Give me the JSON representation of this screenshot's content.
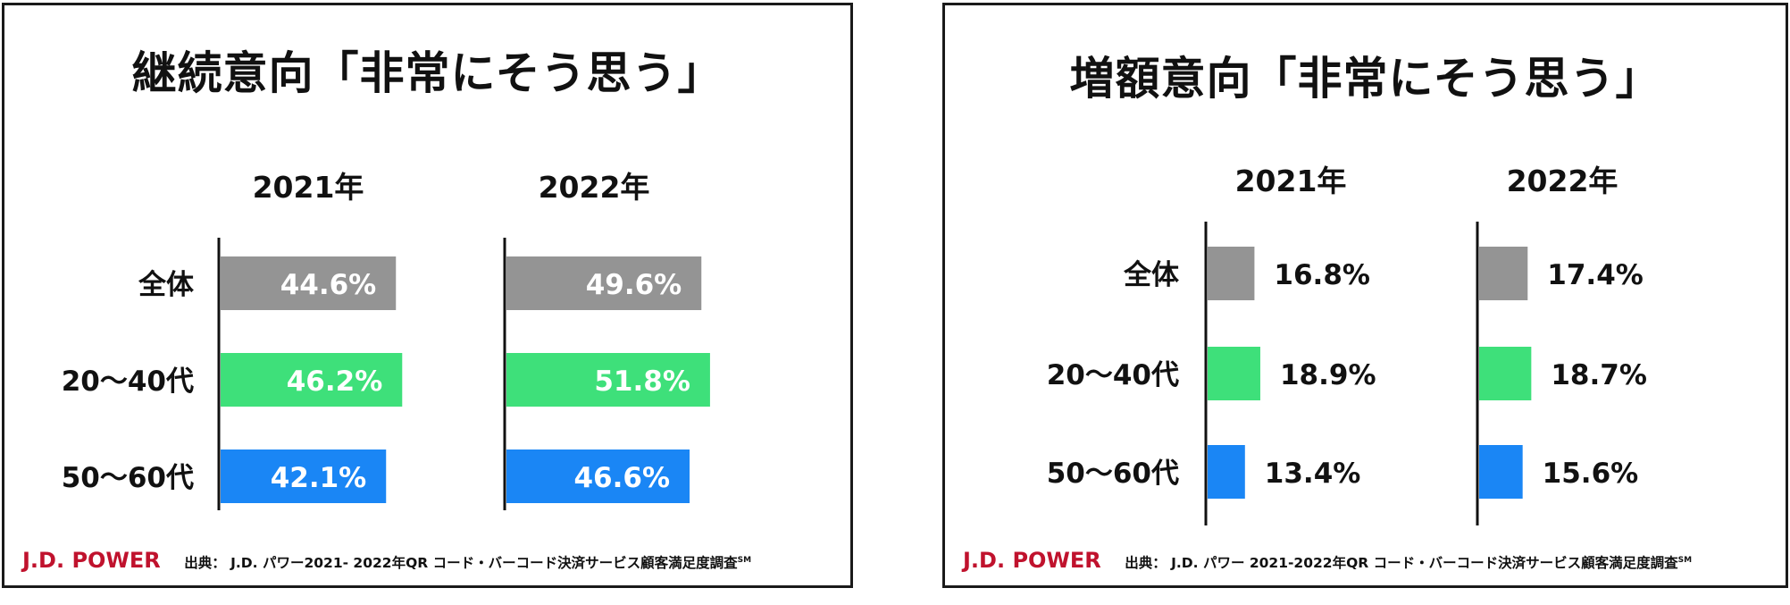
{
  "colors": {
    "overall": "#949494",
    "age_20_40": "#3ee07a",
    "age_50_60": "#1a86f5",
    "brand": "#c0122d"
  },
  "brand": "J.D. POWER",
  "source_prefix": "出典：",
  "source_superscript": "SM",
  "panels": [
    {
      "title": "継続意向「非常にそう思う」",
      "source": "J.D. パワー2021- 2022年QR コード・バーコード決済サービス顧客満足度調査"
    },
    {
      "title": "増額意向「非常にそう思う」",
      "source": "J.D. パワー 2021-2022年QR コード・バーコード決済サービス顧客満足度調査"
    }
  ],
  "chart_data": [
    {
      "type": "bar",
      "orientation": "horizontal",
      "title": "継続意向「非常にそう思う」",
      "categories": [
        "全体",
        "20～40代",
        "50～60代"
      ],
      "series": [
        {
          "name": "2021年",
          "values": [
            44.6,
            46.2,
            42.1
          ],
          "labels": [
            "44.6%",
            "46.2%",
            "42.1%"
          ]
        },
        {
          "name": "2022年",
          "values": [
            49.6,
            51.8,
            46.6
          ],
          "labels": [
            "49.6%",
            "51.8%",
            "46.6%"
          ]
        }
      ],
      "unit": "%",
      "label_position": "inside",
      "grid": false
    },
    {
      "type": "bar",
      "orientation": "horizontal",
      "title": "増額意向「非常にそう思う」",
      "categories": [
        "全体",
        "20～40代",
        "50～60代"
      ],
      "series": [
        {
          "name": "2021年",
          "values": [
            16.8,
            18.9,
            13.4
          ],
          "labels": [
            "16.8%",
            "18.9%",
            "13.4%"
          ]
        },
        {
          "name": "2022年",
          "values": [
            17.4,
            18.7,
            15.6
          ],
          "labels": [
            "17.4%",
            "18.7%",
            "15.6%"
          ]
        }
      ],
      "unit": "%",
      "label_position": "outside",
      "grid": false
    }
  ]
}
